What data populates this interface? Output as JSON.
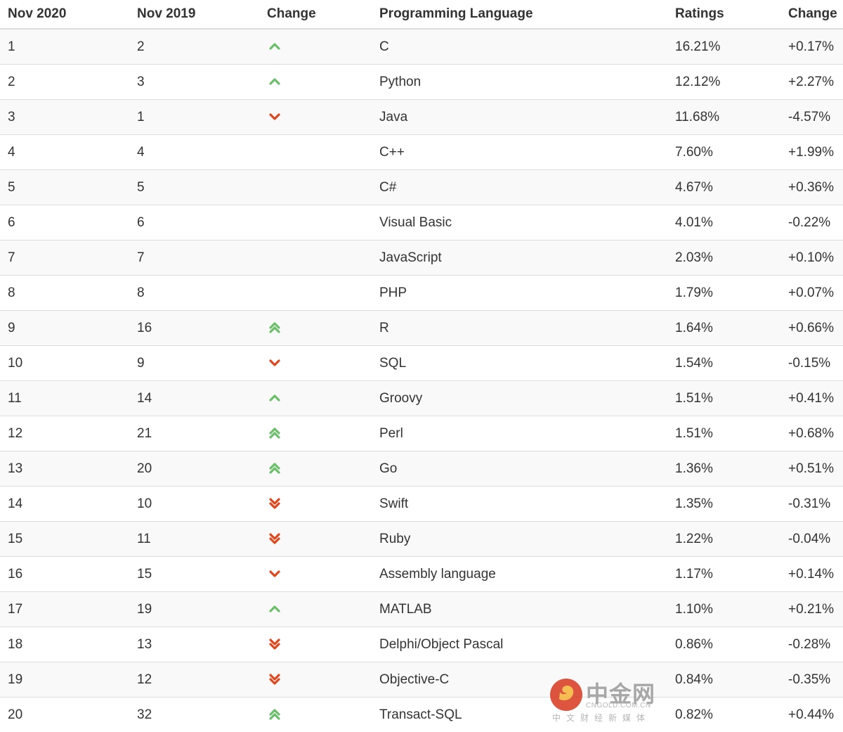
{
  "headers": [
    "Nov 2020",
    "Nov 2019",
    "Change",
    "Programming Language",
    "Ratings",
    "Change"
  ],
  "colors": {
    "up": "#6abf69",
    "down": "#e0471c",
    "row_alt": "#f9f9f9",
    "border": "#dddddd"
  },
  "rows": [
    {
      "now": "1",
      "prev": "2",
      "trend": "up",
      "language": "C",
      "rating": "16.21%",
      "change": "+0.17%"
    },
    {
      "now": "2",
      "prev": "3",
      "trend": "up",
      "language": "Python",
      "rating": "12.12%",
      "change": "+2.27%"
    },
    {
      "now": "3",
      "prev": "1",
      "trend": "down",
      "language": "Java",
      "rating": "11.68%",
      "change": "-4.57%"
    },
    {
      "now": "4",
      "prev": "4",
      "trend": "none",
      "language": "C++",
      "rating": "7.60%",
      "change": "+1.99%"
    },
    {
      "now": "5",
      "prev": "5",
      "trend": "none",
      "language": "C#",
      "rating": "4.67%",
      "change": "+0.36%"
    },
    {
      "now": "6",
      "prev": "6",
      "trend": "none",
      "language": "Visual Basic",
      "rating": "4.01%",
      "change": "-0.22%"
    },
    {
      "now": "7",
      "prev": "7",
      "trend": "none",
      "language": "JavaScript",
      "rating": "2.03%",
      "change": "+0.10%"
    },
    {
      "now": "8",
      "prev": "8",
      "trend": "none",
      "language": "PHP",
      "rating": "1.79%",
      "change": "+0.07%"
    },
    {
      "now": "9",
      "prev": "16",
      "trend": "up2",
      "language": "R",
      "rating": "1.64%",
      "change": "+0.66%"
    },
    {
      "now": "10",
      "prev": "9",
      "trend": "down",
      "language": "SQL",
      "rating": "1.54%",
      "change": "-0.15%"
    },
    {
      "now": "11",
      "prev": "14",
      "trend": "up",
      "language": "Groovy",
      "rating": "1.51%",
      "change": "+0.41%"
    },
    {
      "now": "12",
      "prev": "21",
      "trend": "up2",
      "language": "Perl",
      "rating": "1.51%",
      "change": "+0.68%"
    },
    {
      "now": "13",
      "prev": "20",
      "trend": "up2",
      "language": "Go",
      "rating": "1.36%",
      "change": "+0.51%"
    },
    {
      "now": "14",
      "prev": "10",
      "trend": "down2",
      "language": "Swift",
      "rating": "1.35%",
      "change": "-0.31%"
    },
    {
      "now": "15",
      "prev": "11",
      "trend": "down2",
      "language": "Ruby",
      "rating": "1.22%",
      "change": "-0.04%"
    },
    {
      "now": "16",
      "prev": "15",
      "trend": "down",
      "language": "Assembly language",
      "rating": "1.17%",
      "change": "+0.14%"
    },
    {
      "now": "17",
      "prev": "19",
      "trend": "up",
      "language": "MATLAB",
      "rating": "1.10%",
      "change": "+0.21%"
    },
    {
      "now": "18",
      "prev": "13",
      "trend": "down2",
      "language": "Delphi/Object Pascal",
      "rating": "0.86%",
      "change": "-0.28%"
    },
    {
      "now": "19",
      "prev": "12",
      "trend": "down2",
      "language": "Objective-C",
      "rating": "0.84%",
      "change": "-0.35%"
    },
    {
      "now": "20",
      "prev": "32",
      "trend": "up2",
      "language": "Transact-SQL",
      "rating": "0.82%",
      "change": "+0.44%"
    }
  ],
  "watermark": {
    "name": "中金网",
    "domain": "CNGOLD.COM.CN",
    "slogan": "中文财经新媒体"
  }
}
